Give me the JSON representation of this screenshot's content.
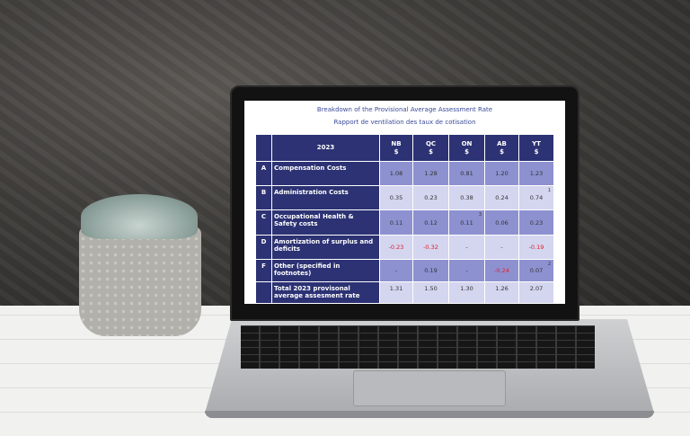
{
  "screen": {
    "title_en": "Breakdown of the Provisional Average Assessment Rate",
    "title_fr": "Rapport de ventilation des taux de cotisation",
    "table": {
      "year": "2023",
      "columns": [
        {
          "code": "NB",
          "unit": "$"
        },
        {
          "code": "QC",
          "unit": "$"
        },
        {
          "code": "ON",
          "unit": "$"
        },
        {
          "code": "AB",
          "unit": "$"
        },
        {
          "code": "YT",
          "unit": "$"
        }
      ],
      "rows": [
        {
          "letter": "A",
          "label": "Compensation Costs",
          "values": [
            "1.08",
            "1.28",
            "0.81",
            "1.20",
            "1.23"
          ],
          "notes": [
            "",
            "",
            "",
            "",
            ""
          ]
        },
        {
          "letter": "B",
          "label": "Administration Costs",
          "values": [
            "0.35",
            "0.23",
            "0.38",
            "0.24",
            "0.74"
          ],
          "notes": [
            "",
            "",
            "",
            "",
            "1"
          ]
        },
        {
          "letter": "C",
          "label": "Occupational Health & Safety costs",
          "values": [
            "0.11",
            "0.12",
            "0.11",
            "0.06",
            "0.23"
          ],
          "notes": [
            "",
            "",
            "3",
            "",
            ""
          ]
        },
        {
          "letter": "D",
          "label": "Amortization of surplus and deficits",
          "values": [
            "-0.23",
            "-0.32",
            "-",
            "-",
            "-0.19"
          ],
          "notes": [
            "",
            "",
            "",
            "",
            ""
          ]
        },
        {
          "letter": "F",
          "label": "Other (specified in footnotes)",
          "values": [
            "-",
            "0.19",
            "-",
            "-0.24",
            "0.07"
          ],
          "notes": [
            "",
            "",
            "",
            "",
            "2"
          ]
        },
        {
          "letter": "",
          "label": "Total 2023 provisonal average assesment rate",
          "values": [
            "1.31",
            "1.50",
            "1.30",
            "1.26",
            "2.07"
          ],
          "notes": [
            "",
            "",
            "",
            "",
            ""
          ]
        }
      ],
      "colors": {
        "header": "#2c3273",
        "row_dark": "#8d91d0",
        "row_light": "#d4d5ef",
        "negative": "#e0202e"
      }
    }
  }
}
